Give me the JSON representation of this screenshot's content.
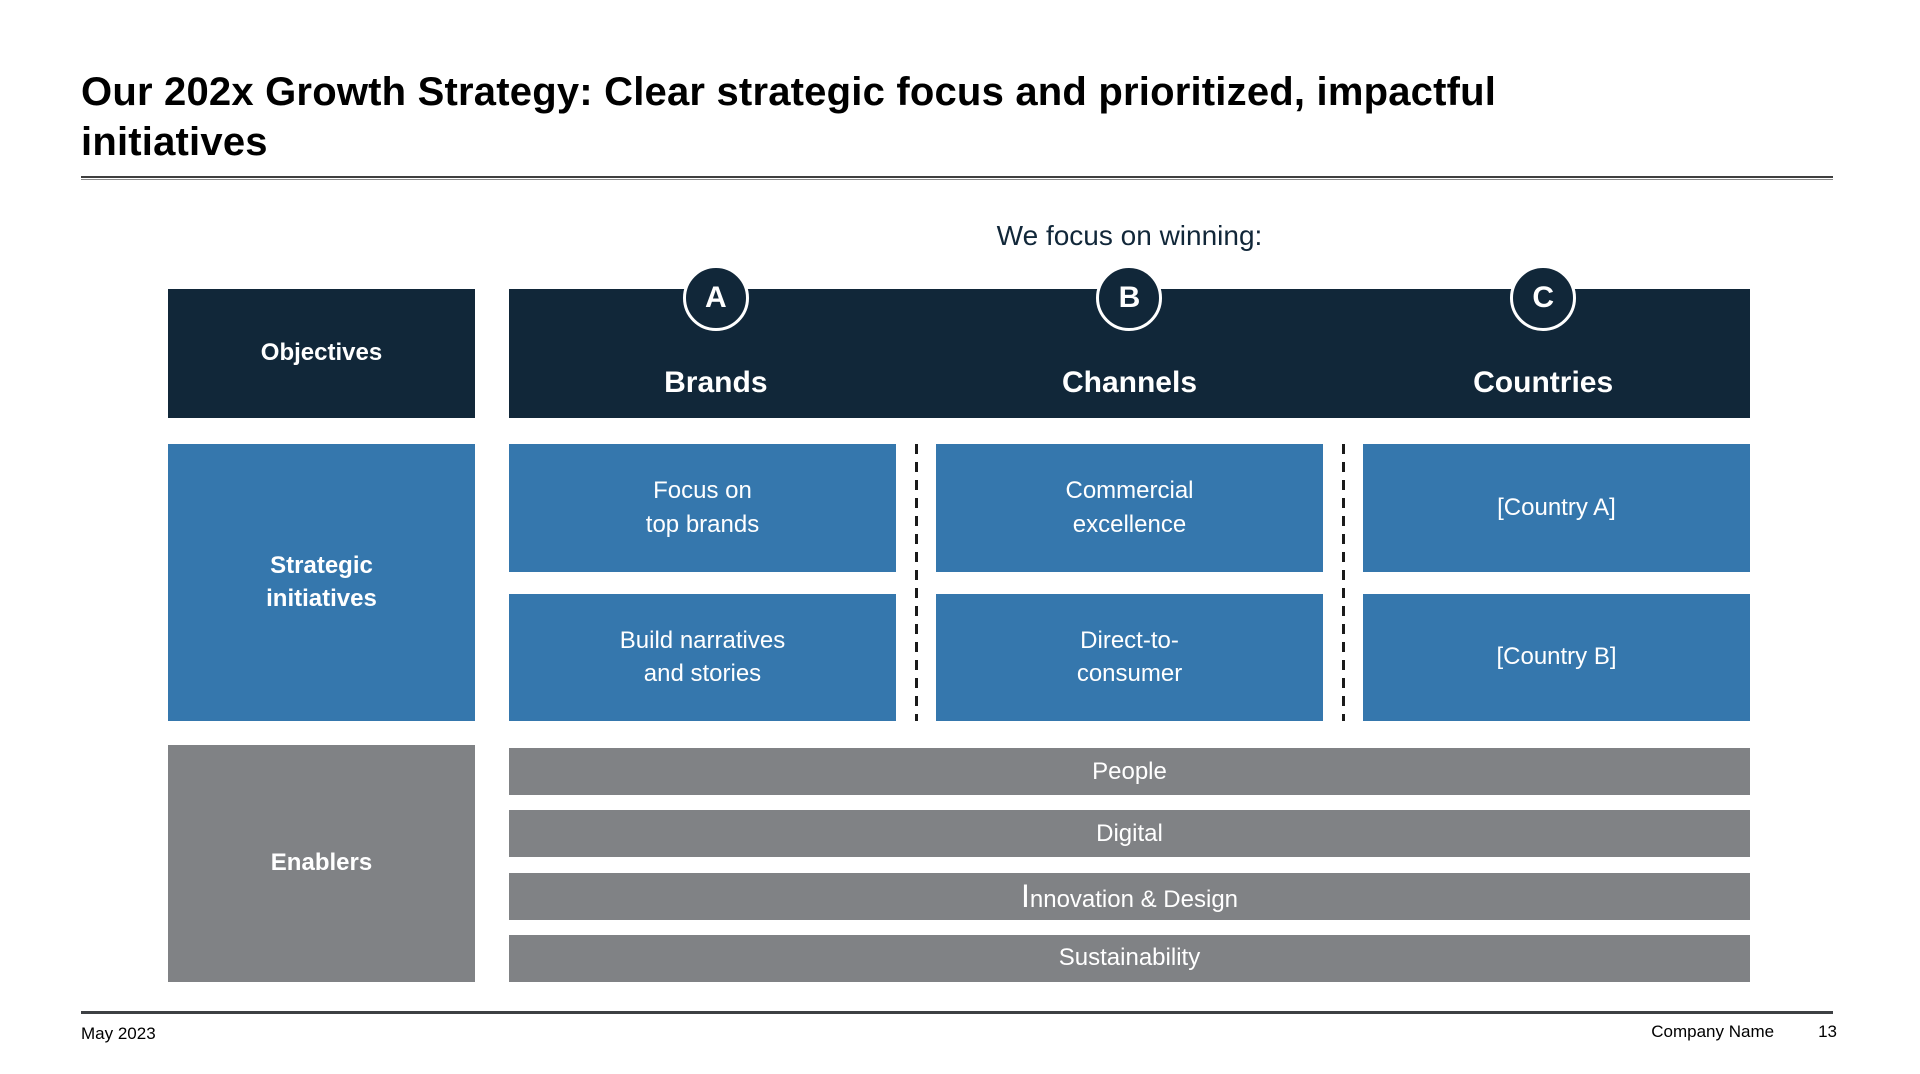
{
  "slide": {
    "title": "Our 202x Growth Strategy: Clear strategic focus and prioritized, impactful initiatives",
    "focus_heading": "We focus on winning:",
    "footer": {
      "date": "May 2023",
      "company": "Company Name",
      "page_number": "13"
    }
  },
  "matrix": {
    "row_labels": {
      "objectives": "Objectives",
      "initiatives": "Strategic\ninitiatives",
      "enablers": "Enablers"
    },
    "columns": [
      {
        "letter": "A",
        "label": "Brands",
        "boxes": [
          "Focus on\ntop brands",
          "Build narratives\nand stories"
        ]
      },
      {
        "letter": "B",
        "label": "Channels",
        "boxes": [
          "Commercial\nexcellence",
          "Direct-to-\nconsumer"
        ]
      },
      {
        "letter": "C",
        "label": "Countries",
        "boxes": [
          "[Country A]",
          "[Country B]"
        ]
      }
    ],
    "enabler_bars": [
      "People",
      "Digital",
      "Innovation & Design",
      "Sustainability"
    ]
  },
  "colors": {
    "navy": "#112739",
    "blue": "#3577AD",
    "gray": "#808285",
    "text": "#000000"
  }
}
